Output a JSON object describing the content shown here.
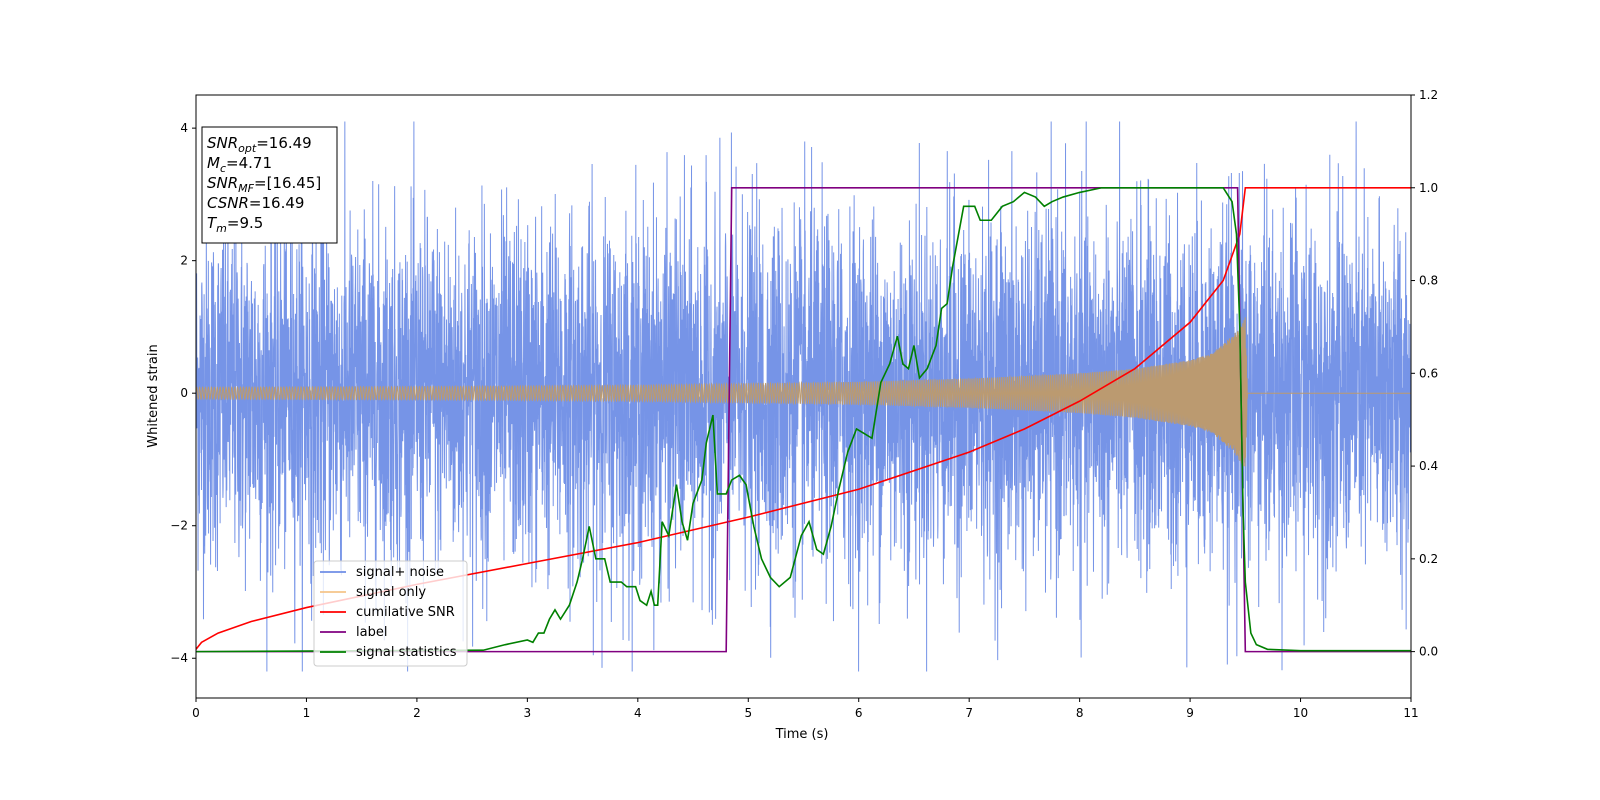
{
  "chart_data": {
    "type": "line",
    "xlabel": "Time (s)",
    "ylabel": "Whitened strain",
    "xlim": [
      0,
      11
    ],
    "ylim": [
      -4.6,
      4.5
    ],
    "y2lim": [
      -0.1,
      1.2
    ],
    "x_ticks": [
      0,
      1,
      2,
      3,
      4,
      5,
      6,
      7,
      8,
      9,
      10,
      11
    ],
    "y_ticks": [
      -4,
      -2,
      0,
      2,
      4
    ],
    "y2_ticks": [
      "0.0",
      "0.2",
      "0.4",
      "0.6",
      "0.8",
      "1.0",
      "1.2"
    ],
    "grid": false,
    "legend_position": "lower-left",
    "colors": {
      "signal_noise": "#6f8ee6",
      "signal_only": "#f5c48a",
      "signal_only_overlap": "#bb9a70",
      "cumulative_snr": "#ff0000",
      "label": "#800080",
      "signal_statistics": "#008000"
    },
    "annotation": {
      "lines": [
        {
          "name": "SNR",
          "sub": "opt",
          "value": "=16.49"
        },
        {
          "name": "M",
          "sub": "c",
          "value": "=4.71"
        },
        {
          "name": "SNR",
          "sub": "MF",
          "value": "=[16.45]"
        },
        {
          "name": "CSNR",
          "sub": "",
          "value": "=16.49"
        },
        {
          "name": "T",
          "sub": "m",
          "value": "=9.5"
        }
      ]
    },
    "series": [
      {
        "name": "signal+ noise",
        "axis": "left",
        "style": "noise",
        "amplitude_envelope": [
          [
            0,
            1.3
          ],
          [
            9.5,
            1.35
          ],
          [
            11,
            1.3
          ]
        ],
        "peak_range": [
          -4.2,
          4.1
        ],
        "range": [
          0,
          11
        ]
      },
      {
        "name": "signal only",
        "axis": "left",
        "style": "chirp",
        "envelope": [
          [
            0,
            0.09
          ],
          [
            2,
            0.1
          ],
          [
            4,
            0.12
          ],
          [
            6,
            0.17
          ],
          [
            7,
            0.22
          ],
          [
            8,
            0.3
          ],
          [
            8.5,
            0.37
          ],
          [
            9,
            0.5
          ],
          [
            9.2,
            0.6
          ],
          [
            9.4,
            0.9
          ],
          [
            9.5,
            1.15
          ],
          [
            9.52,
            0.0
          ],
          [
            11,
            0.0
          ]
        ]
      },
      {
        "name": "cumilative SNR",
        "axis": "right",
        "points": [
          [
            0,
            0.005
          ],
          [
            0.05,
            0.02
          ],
          [
            0.2,
            0.04
          ],
          [
            0.5,
            0.065
          ],
          [
            1,
            0.095
          ],
          [
            2,
            0.145
          ],
          [
            3,
            0.19
          ],
          [
            4,
            0.235
          ],
          [
            5,
            0.29
          ],
          [
            6,
            0.35
          ],
          [
            7,
            0.43
          ],
          [
            7.5,
            0.48
          ],
          [
            8,
            0.54
          ],
          [
            8.5,
            0.61
          ],
          [
            9,
            0.71
          ],
          [
            9.3,
            0.8
          ],
          [
            9.45,
            0.9
          ],
          [
            9.5,
            1.0
          ],
          [
            11,
            1.0
          ]
        ]
      },
      {
        "name": "label",
        "axis": "right",
        "points": [
          [
            0,
            0.0
          ],
          [
            4.8,
            0.0
          ],
          [
            4.85,
            1.0
          ],
          [
            9.43,
            1.0
          ],
          [
            9.5,
            0.0
          ],
          [
            11,
            0.0
          ]
        ]
      },
      {
        "name": "signal statistics",
        "axis": "right",
        "points": [
          [
            0,
            0.0
          ],
          [
            2.6,
            0.003
          ],
          [
            2.8,
            0.015
          ],
          [
            3.0,
            0.025
          ],
          [
            3.05,
            0.02
          ],
          [
            3.1,
            0.04
          ],
          [
            3.15,
            0.04
          ],
          [
            3.2,
            0.07
          ],
          [
            3.25,
            0.09
          ],
          [
            3.3,
            0.07
          ],
          [
            3.38,
            0.1
          ],
          [
            3.45,
            0.15
          ],
          [
            3.5,
            0.2
          ],
          [
            3.56,
            0.27
          ],
          [
            3.62,
            0.2
          ],
          [
            3.7,
            0.2
          ],
          [
            3.75,
            0.15
          ],
          [
            3.85,
            0.15
          ],
          [
            3.9,
            0.14
          ],
          [
            3.98,
            0.14
          ],
          [
            4.02,
            0.11
          ],
          [
            4.08,
            0.1
          ],
          [
            4.12,
            0.13
          ],
          [
            4.15,
            0.1
          ],
          [
            4.18,
            0.1
          ],
          [
            4.22,
            0.28
          ],
          [
            4.28,
            0.25
          ],
          [
            4.35,
            0.36
          ],
          [
            4.4,
            0.28
          ],
          [
            4.45,
            0.24
          ],
          [
            4.5,
            0.32
          ],
          [
            4.58,
            0.37
          ],
          [
            4.62,
            0.45
          ],
          [
            4.68,
            0.51
          ],
          [
            4.72,
            0.34
          ],
          [
            4.8,
            0.34
          ],
          [
            4.85,
            0.37
          ],
          [
            4.92,
            0.38
          ],
          [
            4.98,
            0.36
          ],
          [
            5.05,
            0.27
          ],
          [
            5.12,
            0.2
          ],
          [
            5.2,
            0.16
          ],
          [
            5.28,
            0.14
          ],
          [
            5.38,
            0.16
          ],
          [
            5.48,
            0.25
          ],
          [
            5.55,
            0.28
          ],
          [
            5.62,
            0.22
          ],
          [
            5.68,
            0.21
          ],
          [
            5.75,
            0.27
          ],
          [
            5.82,
            0.35
          ],
          [
            5.9,
            0.43
          ],
          [
            5.98,
            0.48
          ],
          [
            6.05,
            0.47
          ],
          [
            6.12,
            0.46
          ],
          [
            6.2,
            0.58
          ],
          [
            6.28,
            0.62
          ],
          [
            6.35,
            0.68
          ],
          [
            6.4,
            0.62
          ],
          [
            6.45,
            0.61
          ],
          [
            6.5,
            0.66
          ],
          [
            6.55,
            0.59
          ],
          [
            6.62,
            0.61
          ],
          [
            6.7,
            0.66
          ],
          [
            6.75,
            0.74
          ],
          [
            6.8,
            0.75
          ],
          [
            6.85,
            0.83
          ],
          [
            6.95,
            0.96
          ],
          [
            7.05,
            0.96
          ],
          [
            7.1,
            0.93
          ],
          [
            7.2,
            0.93
          ],
          [
            7.3,
            0.96
          ],
          [
            7.4,
            0.97
          ],
          [
            7.5,
            0.99
          ],
          [
            7.6,
            0.98
          ],
          [
            7.68,
            0.96
          ],
          [
            7.75,
            0.97
          ],
          [
            7.85,
            0.98
          ],
          [
            8.0,
            0.99
          ],
          [
            8.2,
            1.0
          ],
          [
            8.5,
            1.0
          ],
          [
            9.0,
            1.0
          ],
          [
            9.3,
            1.0
          ],
          [
            9.38,
            0.97
          ],
          [
            9.42,
            0.9
          ],
          [
            9.45,
            0.7
          ],
          [
            9.48,
            0.3
          ],
          [
            9.5,
            0.15
          ],
          [
            9.55,
            0.04
          ],
          [
            9.6,
            0.015
          ],
          [
            9.7,
            0.005
          ],
          [
            10,
            0.002
          ],
          [
            11,
            0.002
          ]
        ]
      }
    ]
  }
}
